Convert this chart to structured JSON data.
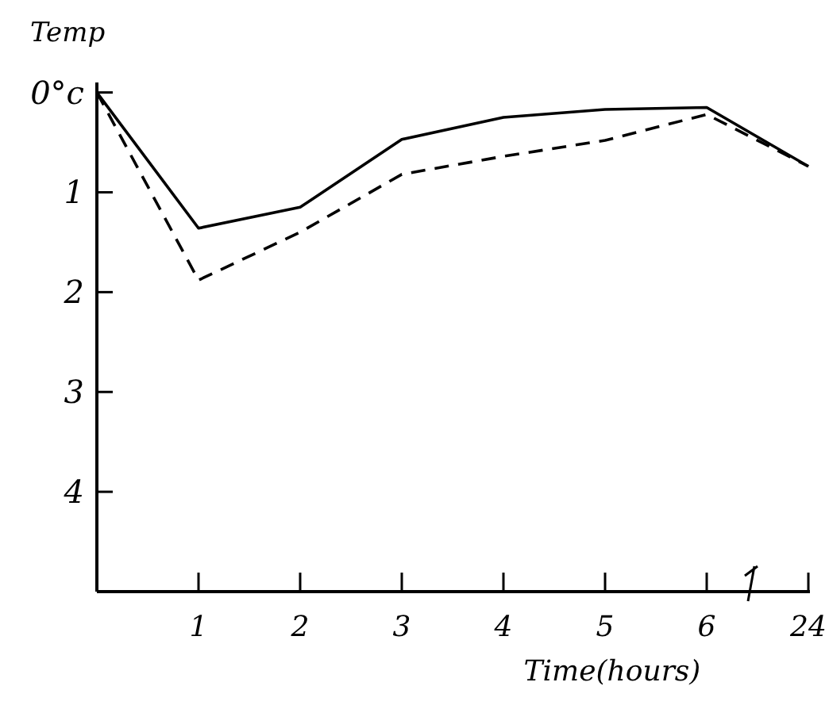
{
  "chart_data": {
    "type": "line",
    "ylabel": "Temp",
    "xlabel": "Time(hours)",
    "categories": [
      null,
      "1",
      "2",
      "3",
      "4",
      "5",
      "6",
      "24"
    ],
    "ylim": [
      5,
      -0.1
    ],
    "yticks": [
      {
        "value": 0,
        "label": "0°c"
      },
      1,
      2,
      3,
      4
    ],
    "grid": false,
    "marker": "none",
    "series": [
      {
        "color": "#000000",
        "line_style": "solid",
        "values": [
          0,
          1.36,
          1.15,
          0.47,
          0.25,
          0.17,
          0.15,
          0.74
        ]
      },
      {
        "color": "#000000",
        "line_style": "dashed",
        "values": [
          0,
          1.88,
          1.4,
          0.82,
          0.64,
          0.48,
          0.22,
          0.74
        ]
      }
    ]
  }
}
